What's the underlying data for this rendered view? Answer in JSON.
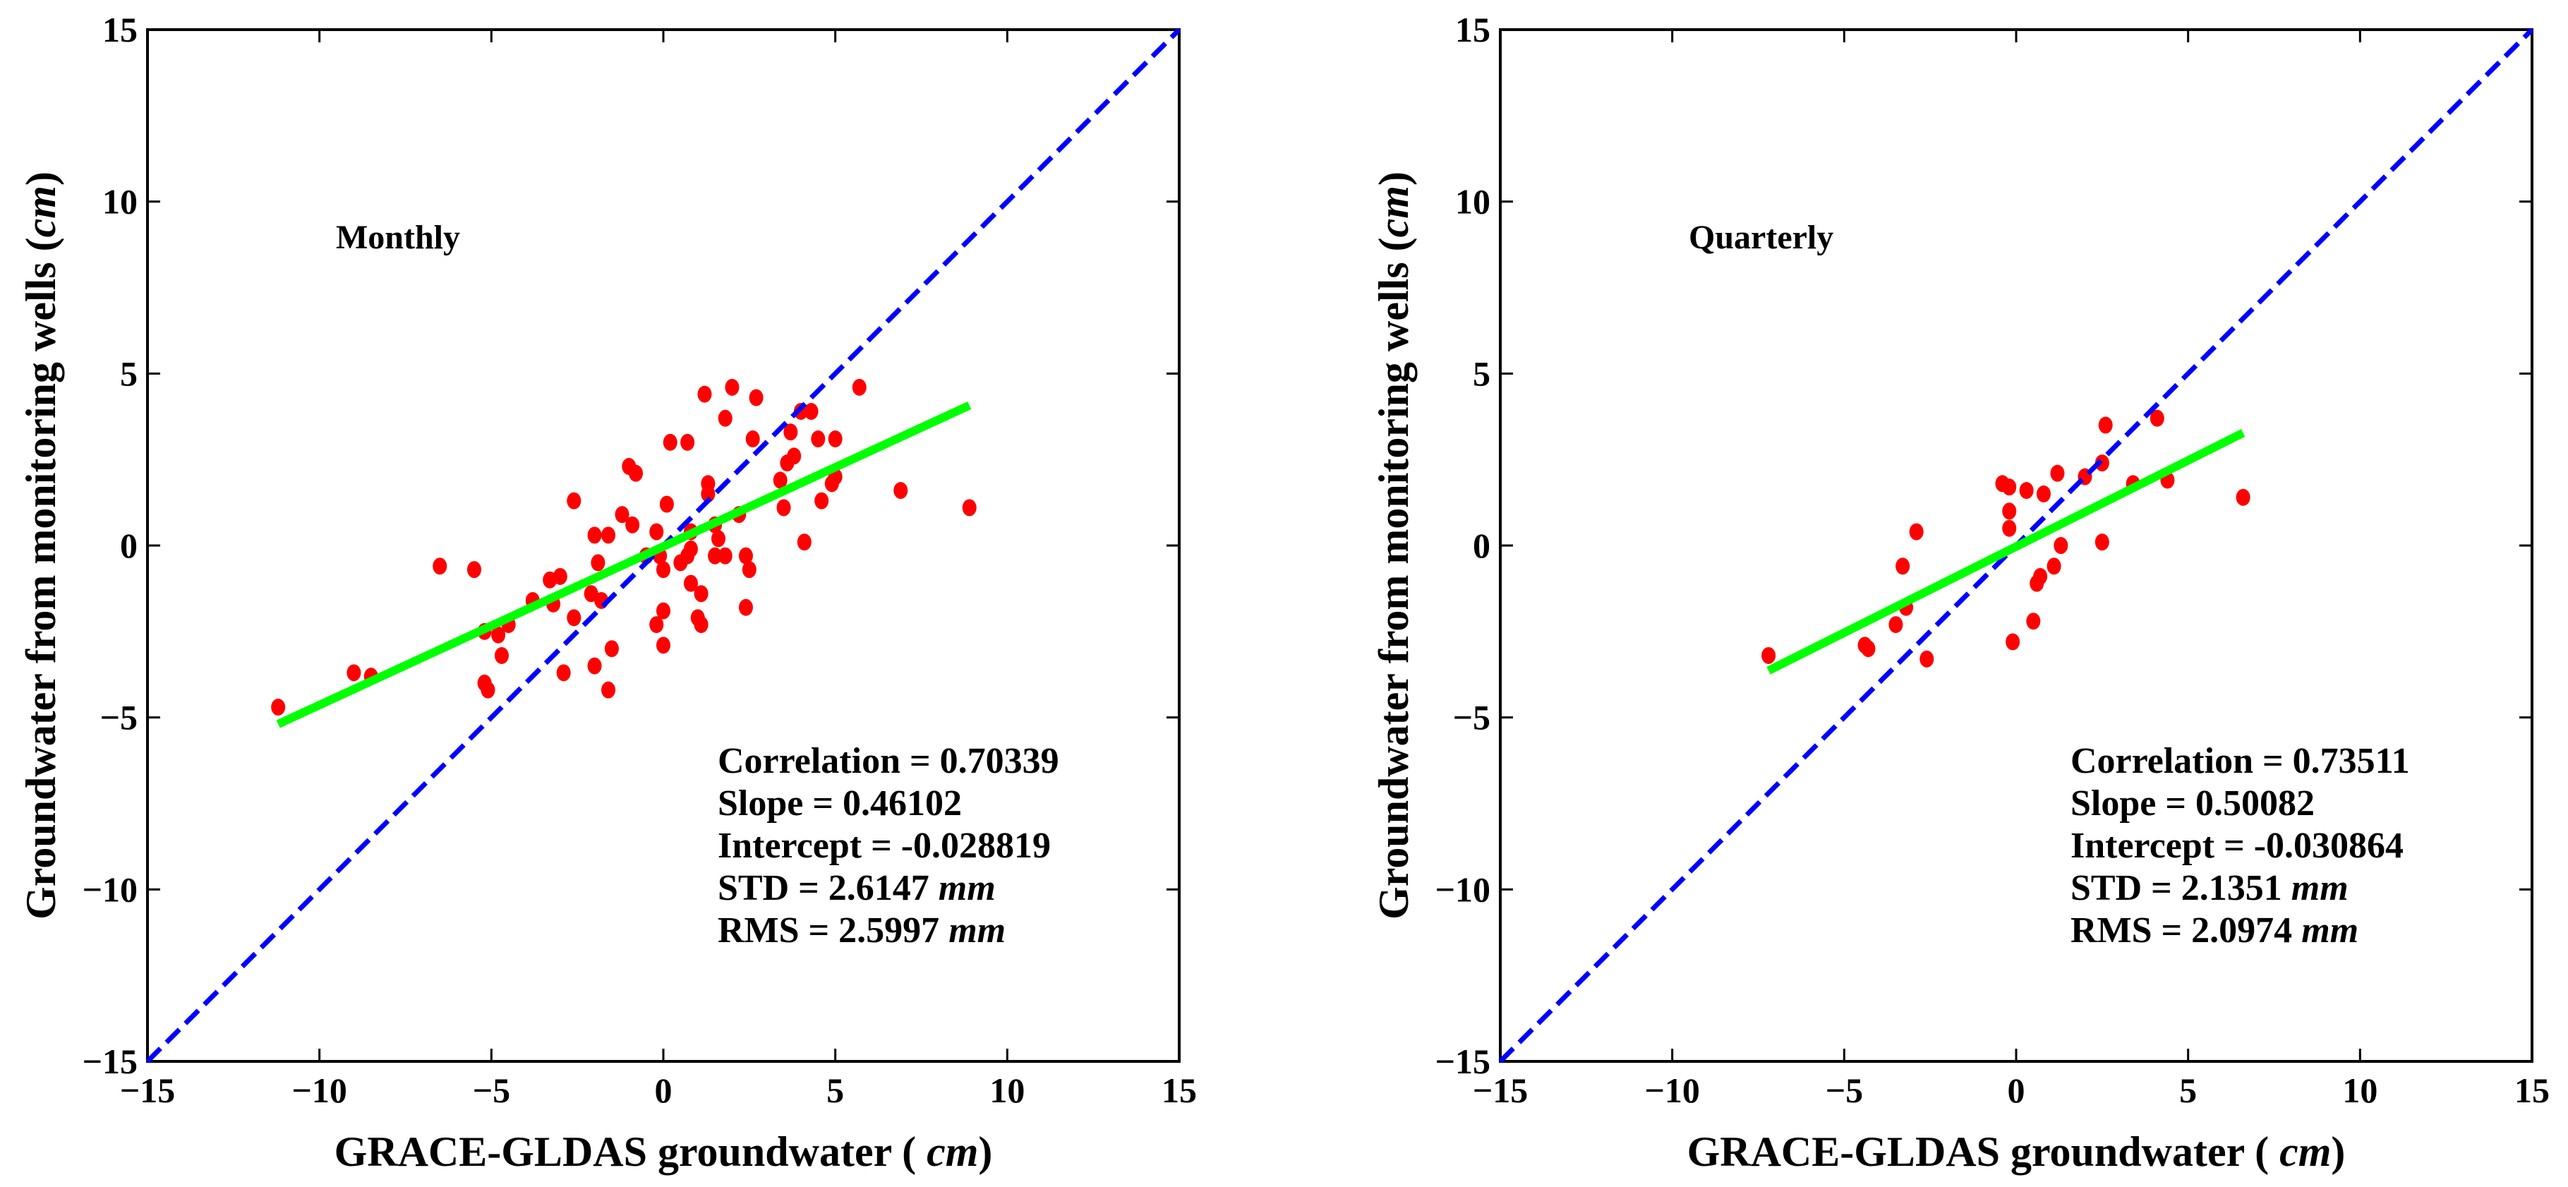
{
  "chart_data": [
    {
      "type": "scatter",
      "title": "Monthly",
      "xlabel": {
        "prefix": "GRACE-GLDAS groundwater ( ",
        "unit": "cm",
        "suffix": ")"
      },
      "ylabel": {
        "prefix": "Groundwater from monitoring wells (",
        "unit": "cm",
        "suffix": ")"
      },
      "xlim": [
        -15,
        15
      ],
      "ylim": [
        -15,
        15
      ],
      "xticks": [
        "-15",
        "-10",
        "-5",
        "0",
        "5",
        "10",
        "15"
      ],
      "yticks": [
        "-15",
        "-10",
        "-5",
        "0",
        "5",
        "10",
        "15"
      ],
      "grid": false,
      "stats": [
        {
          "text": "Correlation = 0.70339",
          "unit": ""
        },
        {
          "text": "Slope = 0.46102",
          "unit": ""
        },
        {
          "text": "Intercept = -0.028819",
          "unit": ""
        },
        {
          "text": "STD = 2.6147 ",
          "unit": "mm"
        },
        {
          "text": "RMS = 2.5997 ",
          "unit": "mm"
        }
      ],
      "fit": {
        "slope": 0.46102,
        "intercept": -0.028819,
        "x_range": [
          -11.2,
          8.9
        ],
        "color": "#00ff00"
      },
      "identity_line": {
        "color": "#0000ff",
        "style": "dashed"
      },
      "point_color": "#ff0000",
      "points": [
        [
          -11.2,
          -4.7
        ],
        [
          -9,
          -3.7
        ],
        [
          -8.5,
          -3.8
        ],
        [
          -6.5,
          -0.6
        ],
        [
          -5.5,
          -0.7
        ],
        [
          -5.2,
          -2.5
        ],
        [
          -5.2,
          -4
        ],
        [
          -5.1,
          -4.2
        ],
        [
          -4.8,
          -2.6
        ],
        [
          -4.7,
          -3.2
        ],
        [
          -4.5,
          -2.3
        ],
        [
          -3.8,
          -1.6
        ],
        [
          -3.3,
          -1
        ],
        [
          -3,
          -0.9
        ],
        [
          -3.2,
          -1.7
        ],
        [
          -2.9,
          -3.7
        ],
        [
          -2.6,
          1.3
        ],
        [
          -2.6,
          -2.1
        ],
        [
          -2.1,
          -1.4
        ],
        [
          -2,
          0.3
        ],
        [
          -1.9,
          -0.5
        ],
        [
          -1.8,
          -1.6
        ],
        [
          -1.6,
          0.3
        ],
        [
          -1.5,
          -3
        ],
        [
          -1.6,
          -4.2
        ],
        [
          -2,
          -3.5
        ],
        [
          -1.2,
          0.9
        ],
        [
          -1,
          2.3
        ],
        [
          -0.8,
          2.1
        ],
        [
          -0.9,
          0.6
        ],
        [
          -0.5,
          -0.3
        ],
        [
          -0.2,
          0.4
        ],
        [
          -0.2,
          -2.3
        ],
        [
          0,
          -1.9
        ],
        [
          0,
          -0.7
        ],
        [
          0,
          -2.9
        ],
        [
          0.2,
          3
        ],
        [
          0.1,
          1.2
        ],
        [
          0.5,
          -0.5
        ],
        [
          0.7,
          -0.3
        ],
        [
          0.8,
          -0.1
        ],
        [
          0.7,
          3
        ],
        [
          0.8,
          -1.1
        ],
        [
          1,
          -2.1
        ],
        [
          1.1,
          -1.4
        ],
        [
          1.1,
          -2.3
        ],
        [
          1.2,
          4.4
        ],
        [
          1.3,
          1.8
        ],
        [
          1.3,
          1.5
        ],
        [
          1.5,
          0.6
        ],
        [
          1.6,
          0.2
        ],
        [
          1.5,
          -0.3
        ],
        [
          1.8,
          -0.3
        ],
        [
          1.8,
          3.7
        ],
        [
          2,
          4.6
        ],
        [
          2.2,
          0.9
        ],
        [
          2.4,
          -0.3
        ],
        [
          2.4,
          -1.8
        ],
        [
          2.5,
          -0.7
        ],
        [
          2.6,
          3.1
        ],
        [
          2.7,
          4.3
        ],
        [
          3.4,
          1.9
        ],
        [
          3.5,
          1.1
        ],
        [
          3.6,
          2.4
        ],
        [
          3.8,
          2.6
        ],
        [
          3.7,
          3.3
        ],
        [
          4,
          3.9
        ],
        [
          4.1,
          0.1
        ],
        [
          4.3,
          3.9
        ],
        [
          4.5,
          3.1
        ],
        [
          4.6,
          1.3
        ],
        [
          4.9,
          1.8
        ],
        [
          5,
          3.1
        ],
        [
          5,
          2
        ],
        [
          5.7,
          4.6
        ],
        [
          6.9,
          1.6
        ],
        [
          8.9,
          1.1
        ],
        [
          -0.1,
          -0.3
        ],
        [
          0.8,
          0.4
        ]
      ]
    },
    {
      "type": "scatter",
      "title": "Quarterly",
      "xlabel": {
        "prefix": "GRACE-GLDAS groundwater ( ",
        "unit": "cm",
        "suffix": ")"
      },
      "ylabel": {
        "prefix": "Groundwater from monitoring wells (",
        "unit": "cm",
        "suffix": ")"
      },
      "xlim": [
        -15,
        15
      ],
      "ylim": [
        -15,
        15
      ],
      "xticks": [
        "-15",
        "-10",
        "-5",
        "0",
        "5",
        "10",
        "15"
      ],
      "yticks": [
        "-15",
        "-10",
        "-5",
        "0",
        "5",
        "10",
        "15"
      ],
      "grid": false,
      "stats": [
        {
          "text": "Correlation = 0.73511",
          "unit": ""
        },
        {
          "text": "Slope = 0.50082",
          "unit": ""
        },
        {
          "text": "Intercept = -0.030864",
          "unit": ""
        },
        {
          "text": "STD = 2.1351 ",
          "unit": "mm"
        },
        {
          "text": "RMS = 2.0974 ",
          "unit": "mm"
        }
      ],
      "fit": {
        "slope": 0.50082,
        "intercept": -0.030864,
        "x_range": [
          -7.2,
          6.6
        ],
        "color": "#00ff00"
      },
      "identity_line": {
        "color": "#0000ff",
        "style": "dashed"
      },
      "point_color": "#ff0000",
      "points": [
        [
          -7.2,
          -3.2
        ],
        [
          -4.4,
          -2.9
        ],
        [
          -4.3,
          -3
        ],
        [
          -3.5,
          -2.3
        ],
        [
          -3.3,
          -0.6
        ],
        [
          -3.2,
          -1.8
        ],
        [
          -2.9,
          0.4
        ],
        [
          -2.6,
          -3.3
        ],
        [
          -0.4,
          1.8
        ],
        [
          -0.2,
          1.7
        ],
        [
          -0.2,
          1
        ],
        [
          -0.2,
          0.5
        ],
        [
          -0.1,
          -2.8
        ],
        [
          0.3,
          1.6
        ],
        [
          0.5,
          -2.2
        ],
        [
          0.6,
          -1.1
        ],
        [
          0.7,
          -0.9
        ],
        [
          0.8,
          1.5
        ],
        [
          1.1,
          -0.6
        ],
        [
          1.2,
          2.1
        ],
        [
          1.3,
          0
        ],
        [
          2,
          2
        ],
        [
          2.5,
          0.1
        ],
        [
          2.5,
          2.4
        ],
        [
          2.6,
          3.5
        ],
        [
          3.4,
          1.8
        ],
        [
          4.1,
          3.7
        ],
        [
          4.4,
          1.9
        ],
        [
          6.6,
          1.4
        ]
      ]
    }
  ]
}
